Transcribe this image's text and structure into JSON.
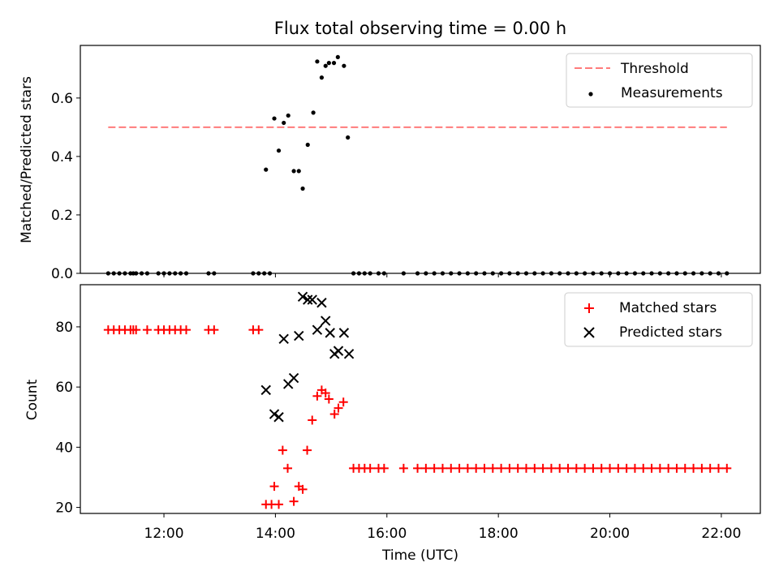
{
  "chart_data": [
    {
      "type": "scatter",
      "title": "Flux total observing time = 0.00 h",
      "xlabel": "",
      "ylabel": "Matched/Predicted stars",
      "x_unit": "hours (UTC, decimal)",
      "xlim": [
        10.5,
        22.7
      ],
      "ylim": [
        0.0,
        0.78
      ],
      "y_ticks": [
        "0.0",
        "0.2",
        "0.4",
        "0.6"
      ],
      "legend": {
        "position": "top-right",
        "entries": [
          "Threshold",
          "Measurements"
        ]
      },
      "threshold": {
        "name": "Threshold",
        "value": 0.5,
        "x_range": [
          11.0,
          22.1
        ],
        "style": "dashed",
        "color": "#ff7b7b"
      },
      "measurements": {
        "name": "Measurements",
        "color": "#000000",
        "points": [
          [
            13.83,
            0.355
          ],
          [
            13.98,
            0.53
          ],
          [
            14.06,
            0.42
          ],
          [
            14.15,
            0.515
          ],
          [
            14.23,
            0.54
          ],
          [
            14.33,
            0.35
          ],
          [
            14.42,
            0.35
          ],
          [
            14.49,
            0.29
          ],
          [
            14.58,
            0.44
          ],
          [
            14.68,
            0.55
          ],
          [
            14.75,
            0.725
          ],
          [
            14.83,
            0.67
          ],
          [
            14.9,
            0.71
          ],
          [
            14.96,
            0.72
          ],
          [
            15.05,
            0.72
          ],
          [
            15.12,
            0.74
          ],
          [
            15.23,
            0.71
          ],
          [
            15.3,
            0.465
          ]
        ],
        "zero_value_times": [
          11.0,
          11.1,
          11.2,
          11.3,
          11.4,
          11.45,
          11.5,
          11.6,
          11.7,
          11.9,
          12.0,
          12.1,
          12.2,
          12.3,
          12.4,
          12.8,
          12.9,
          13.6,
          13.7,
          13.8,
          13.9,
          15.4,
          15.5,
          15.6,
          15.7,
          15.85,
          15.95,
          16.3,
          16.55,
          16.7,
          16.85,
          17.0,
          17.15,
          17.3,
          17.45,
          17.6,
          17.75,
          17.9,
          18.05,
          18.2,
          18.35,
          18.5,
          18.65,
          18.8,
          18.95,
          19.1,
          19.25,
          19.4,
          19.55,
          19.7,
          19.85,
          20.0,
          20.15,
          20.3,
          20.45,
          20.6,
          20.75,
          20.9,
          21.05,
          21.2,
          21.35,
          21.5,
          21.65,
          21.8,
          21.95,
          22.1
        ]
      }
    },
    {
      "type": "scatter",
      "title": "",
      "xlabel": "Time (UTC)",
      "ylabel": "Count",
      "x_unit": "hours (UTC, decimal)",
      "xlim": [
        10.5,
        22.7
      ],
      "ylim": [
        18,
        94
      ],
      "y_ticks": [
        "20",
        "40",
        "60",
        "80"
      ],
      "x_ticks": [
        {
          "value": 12,
          "label": "12:00"
        },
        {
          "value": 14,
          "label": "14:00"
        },
        {
          "value": 16,
          "label": "16:00"
        },
        {
          "value": 18,
          "label": "18:00"
        },
        {
          "value": 20,
          "label": "20:00"
        },
        {
          "value": 22,
          "label": "22:00"
        }
      ],
      "legend": {
        "position": "top-right",
        "entries": [
          "Matched stars",
          "Predicted stars"
        ]
      },
      "series": [
        {
          "name": "Matched stars",
          "marker": "plus",
          "color": "#ff0000",
          "points": [
            [
              11.0,
              79
            ],
            [
              11.1,
              79
            ],
            [
              11.2,
              79
            ],
            [
              11.3,
              79
            ],
            [
              11.4,
              79
            ],
            [
              11.45,
              79
            ],
            [
              11.5,
              79
            ],
            [
              11.7,
              79
            ],
            [
              11.9,
              79
            ],
            [
              12.0,
              79
            ],
            [
              12.1,
              79
            ],
            [
              12.2,
              79
            ],
            [
              12.3,
              79
            ],
            [
              12.4,
              79
            ],
            [
              12.8,
              79
            ],
            [
              12.9,
              79
            ],
            [
              13.6,
              79
            ],
            [
              13.7,
              79
            ],
            [
              13.83,
              21
            ],
            [
              13.93,
              21
            ],
            [
              13.98,
              27
            ],
            [
              14.06,
              21
            ],
            [
              14.13,
              39
            ],
            [
              14.22,
              33
            ],
            [
              14.33,
              22
            ],
            [
              14.42,
              27
            ],
            [
              14.49,
              26
            ],
            [
              14.57,
              39
            ],
            [
              14.66,
              49
            ],
            [
              14.75,
              57
            ],
            [
              14.83,
              59
            ],
            [
              14.9,
              58
            ],
            [
              14.96,
              56
            ],
            [
              15.06,
              51
            ],
            [
              15.13,
              53
            ],
            [
              15.22,
              55
            ],
            [
              15.4,
              33
            ],
            [
              15.5,
              33
            ],
            [
              15.6,
              33
            ],
            [
              15.7,
              33
            ],
            [
              15.85,
              33
            ],
            [
              15.95,
              33
            ],
            [
              16.3,
              33
            ],
            [
              16.55,
              33
            ],
            [
              16.7,
              33
            ],
            [
              16.85,
              33
            ],
            [
              17.0,
              33
            ],
            [
              17.15,
              33
            ],
            [
              17.3,
              33
            ],
            [
              17.45,
              33
            ],
            [
              17.6,
              33
            ],
            [
              17.75,
              33
            ],
            [
              17.9,
              33
            ],
            [
              18.05,
              33
            ],
            [
              18.2,
              33
            ],
            [
              18.35,
              33
            ],
            [
              18.5,
              33
            ],
            [
              18.65,
              33
            ],
            [
              18.8,
              33
            ],
            [
              18.95,
              33
            ],
            [
              19.1,
              33
            ],
            [
              19.25,
              33
            ],
            [
              19.4,
              33
            ],
            [
              19.55,
              33
            ],
            [
              19.7,
              33
            ],
            [
              19.85,
              33
            ],
            [
              20.0,
              33
            ],
            [
              20.15,
              33
            ],
            [
              20.3,
              33
            ],
            [
              20.45,
              33
            ],
            [
              20.6,
              33
            ],
            [
              20.75,
              33
            ],
            [
              20.9,
              33
            ],
            [
              21.05,
              33
            ],
            [
              21.2,
              33
            ],
            [
              21.35,
              33
            ],
            [
              21.5,
              33
            ],
            [
              21.65,
              33
            ],
            [
              21.8,
              33
            ],
            [
              21.95,
              33
            ],
            [
              22.1,
              33
            ]
          ]
        },
        {
          "name": "Predicted stars",
          "marker": "x",
          "color": "#000000",
          "points": [
            [
              13.83,
              59
            ],
            [
              13.98,
              51
            ],
            [
              14.06,
              50
            ],
            [
              14.15,
              76
            ],
            [
              14.23,
              61
            ],
            [
              14.33,
              63
            ],
            [
              14.42,
              77
            ],
            [
              14.49,
              90
            ],
            [
              14.58,
              89
            ],
            [
              14.66,
              89
            ],
            [
              14.75,
              79
            ],
            [
              14.83,
              88
            ],
            [
              14.9,
              82
            ],
            [
              14.98,
              78
            ],
            [
              15.06,
              71
            ],
            [
              15.13,
              72
            ],
            [
              15.23,
              78
            ],
            [
              15.32,
              71
            ]
          ]
        }
      ]
    }
  ]
}
